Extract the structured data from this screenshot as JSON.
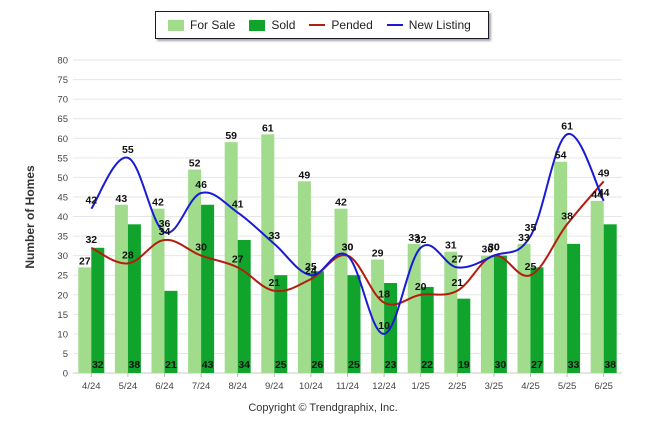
{
  "legend": {
    "for_sale": "For Sale",
    "sold": "Sold",
    "pended": "Pended",
    "new_listing": "New Listing"
  },
  "colors": {
    "for_sale": "#a0dc8c",
    "sold": "#10a42c",
    "pended": "#b21e0e",
    "new_listing": "#1a1ad6"
  },
  "credit": "Copyright © Trendgraphix, Inc.",
  "chart_data": {
    "type": "bar",
    "ylabel": "Number of Homes",
    "ylim": [
      0,
      80
    ],
    "yticks": [
      0,
      5,
      10,
      15,
      20,
      25,
      30,
      35,
      40,
      45,
      50,
      55,
      60,
      65,
      70,
      75,
      80
    ],
    "grid": true,
    "legend_position": "top",
    "categories": [
      "4/24",
      "5/24",
      "6/24",
      "7/24",
      "8/24",
      "9/24",
      "10/24",
      "11/24",
      "12/24",
      "1/25",
      "2/25",
      "3/25",
      "4/25",
      "5/25",
      "6/25"
    ],
    "series": [
      {
        "name": "For Sale",
        "kind": "bar",
        "values": [
          27,
          43,
          42,
          52,
          59,
          61,
          49,
          42,
          29,
          33,
          31,
          30,
          33,
          54,
          44
        ]
      },
      {
        "name": "Sold",
        "kind": "bar",
        "values": [
          32,
          38,
          21,
          43,
          34,
          25,
          26,
          25,
          23,
          22,
          19,
          30,
          27,
          33,
          38
        ]
      },
      {
        "name": "Pended",
        "kind": "line",
        "values": [
          32,
          28,
          34,
          30,
          27,
          21,
          24,
          30,
          18,
          20,
          21,
          30,
          25,
          38,
          49
        ]
      },
      {
        "name": "New Listing",
        "kind": "line",
        "values": [
          42,
          55,
          36,
          46,
          41,
          33,
          25,
          30,
          10,
          32,
          27,
          30,
          35,
          61,
          44
        ]
      }
    ]
  }
}
